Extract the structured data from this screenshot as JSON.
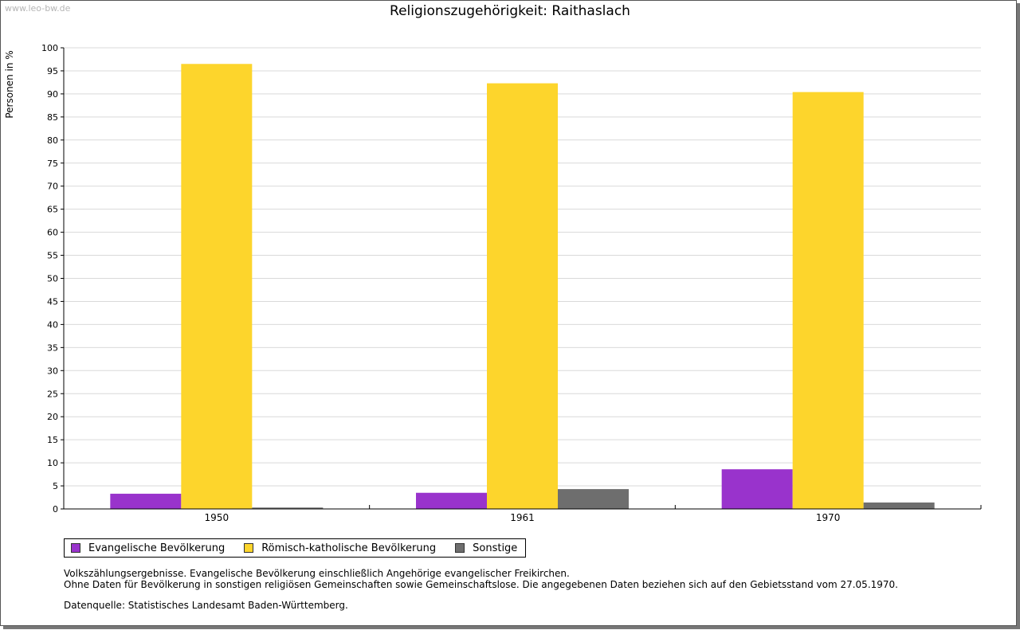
{
  "watermark": "www.leo-bw.de",
  "colors": {
    "evangelisch": "#9933cc",
    "katholisch": "#fdd52c",
    "sonstige": "#6e6e6e",
    "grid": "#d9d9d9"
  },
  "chart_data": {
    "type": "bar",
    "title": "Religionszugehörigkeit: Raithaslach",
    "xlabel": "",
    "ylabel": "Personen in %",
    "ylim": [
      0,
      100
    ],
    "yticks": [
      0,
      5,
      10,
      15,
      20,
      25,
      30,
      35,
      40,
      45,
      50,
      55,
      60,
      65,
      70,
      75,
      80,
      85,
      90,
      95,
      100
    ],
    "categories": [
      "1950",
      "1961",
      "1970"
    ],
    "grid": true,
    "legend_position": "bottom-left",
    "series": [
      {
        "name": "Evangelische Bevölkerung",
        "color_key": "evangelisch",
        "values": [
          3.3,
          3.5,
          8.6
        ]
      },
      {
        "name": "Römisch-katholische Bevölkerung",
        "color_key": "katholisch",
        "values": [
          96.5,
          92.3,
          90.4
        ]
      },
      {
        "name": "Sonstige",
        "color_key": "sonstige",
        "values": [
          0.3,
          4.3,
          1.4
        ]
      }
    ]
  },
  "notes": {
    "line1": "Volkszählungsergebnisse. Evangelische Bevölkerung einschließlich Angehörige evangelischer Freikirchen.",
    "line2": "Ohne Daten für Bevölkerung in sonstigen religiösen Gemeinschaften sowie Gemeinschaftslose. Die angegebenen Daten beziehen sich auf den Gebietsstand vom 27.05.1970.",
    "source": "Datenquelle: Statistisches Landesamt Baden-Württemberg."
  }
}
